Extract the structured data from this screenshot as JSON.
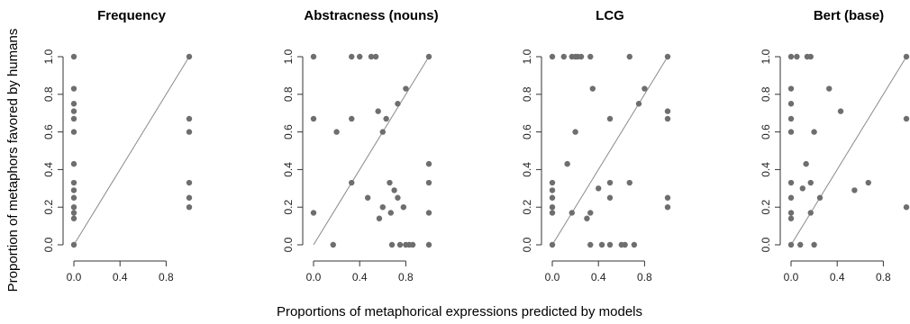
{
  "figure": {
    "ylabel": "Proportion of metaphors favored by humans",
    "xlabel": "Proportions of metaphorical expressions predicted by models"
  },
  "chart_data": [
    {
      "type": "scatter",
      "title": "Frequency",
      "xlim": [
        0,
        1
      ],
      "ylim": [
        0,
        1
      ],
      "xticks": [
        "0.0",
        "0.4",
        "0.8"
      ],
      "yticks": [
        "0.0",
        "0.2",
        "0.4",
        "0.6",
        "0.8",
        "1.0"
      ],
      "reference_line": "y = x",
      "grid": false,
      "points": [
        [
          0,
          1.0
        ],
        [
          0,
          0.83
        ],
        [
          0,
          0.75
        ],
        [
          0,
          0.71
        ],
        [
          0,
          0.67
        ],
        [
          0,
          0.6
        ],
        [
          0,
          0.43
        ],
        [
          0,
          0.33
        ],
        [
          0,
          0.29
        ],
        [
          0,
          0.25
        ],
        [
          0,
          0.2
        ],
        [
          0,
          0.17
        ],
        [
          0,
          0.14
        ],
        [
          0,
          0.0
        ],
        [
          1,
          1.0
        ],
        [
          1,
          0.67
        ],
        [
          1,
          0.6
        ],
        [
          1,
          0.33
        ],
        [
          1,
          0.25
        ],
        [
          1,
          0.2
        ]
      ]
    },
    {
      "type": "scatter",
      "title": "Abstracness (nouns)",
      "xlim": [
        0,
        1
      ],
      "ylim": [
        0,
        1
      ],
      "xticks": [
        "0.0",
        "0.4",
        "0.8"
      ],
      "yticks": [
        "0.0",
        "0.2",
        "0.4",
        "0.6",
        "0.8",
        "1.0"
      ],
      "reference_line": "y = x",
      "grid": false,
      "points": [
        [
          0,
          1.0
        ],
        [
          0,
          0.67
        ],
        [
          0,
          0.17
        ],
        [
          0.17,
          0.0
        ],
        [
          0.2,
          0.6
        ],
        [
          0.33,
          1.0
        ],
        [
          0.33,
          0.67
        ],
        [
          0.33,
          0.33
        ],
        [
          0.4,
          1.0
        ],
        [
          0.5,
          1.0
        ],
        [
          0.54,
          1.0
        ],
        [
          0.47,
          0.25
        ],
        [
          0.56,
          0.71
        ],
        [
          0.57,
          0.14
        ],
        [
          0.6,
          0.2
        ],
        [
          0.6,
          0.6
        ],
        [
          0.63,
          0.67
        ],
        [
          0.66,
          0.33
        ],
        [
          0.67,
          0.17
        ],
        [
          0.68,
          0.0
        ],
        [
          0.7,
          0.29
        ],
        [
          0.73,
          0.75
        ],
        [
          0.73,
          0.25
        ],
        [
          0.75,
          0.0
        ],
        [
          0.78,
          0.2
        ],
        [
          0.8,
          0.83
        ],
        [
          0.8,
          0.0
        ],
        [
          0.83,
          0.0
        ],
        [
          0.86,
          0.0
        ],
        [
          1,
          1.0
        ],
        [
          1,
          0.43
        ],
        [
          1,
          0.33
        ],
        [
          1,
          0.17
        ],
        [
          1,
          0.0
        ]
      ]
    },
    {
      "type": "scatter",
      "title": "LCG",
      "xlim": [
        0,
        1
      ],
      "ylim": [
        0,
        1
      ],
      "xticks": [
        "0.0",
        "0.4",
        "0.8"
      ],
      "yticks": [
        "0.0",
        "0.2",
        "0.4",
        "0.6",
        "0.8",
        "1.0"
      ],
      "reference_line": "y = x",
      "grid": false,
      "points": [
        [
          0,
          1.0
        ],
        [
          0,
          0.33
        ],
        [
          0,
          0.29
        ],
        [
          0,
          0.25
        ],
        [
          0,
          0.2
        ],
        [
          0,
          0.17
        ],
        [
          0,
          0.0
        ],
        [
          0.1,
          1.0
        ],
        [
          0.13,
          0.43
        ],
        [
          0.17,
          0.17
        ],
        [
          0.17,
          1.0
        ],
        [
          0.2,
          1.0
        ],
        [
          0.2,
          0.6
        ],
        [
          0.22,
          1.0
        ],
        [
          0.25,
          1.0
        ],
        [
          0.3,
          0.14
        ],
        [
          0.33,
          0.0
        ],
        [
          0.33,
          0.17
        ],
        [
          0.33,
          1.0
        ],
        [
          0.35,
          0.83
        ],
        [
          0.4,
          0.3
        ],
        [
          0.43,
          0.0
        ],
        [
          0.5,
          0.0
        ],
        [
          0.5,
          0.67
        ],
        [
          0.5,
          0.33
        ],
        [
          0.5,
          0.25
        ],
        [
          0.6,
          0.0
        ],
        [
          0.63,
          0.0
        ],
        [
          0.67,
          0.33
        ],
        [
          0.67,
          1.0
        ],
        [
          0.71,
          0.0
        ],
        [
          0.75,
          0.75
        ],
        [
          0.8,
          0.83
        ],
        [
          1,
          1.0
        ],
        [
          1,
          0.71
        ],
        [
          1,
          0.67
        ],
        [
          1,
          0.25
        ],
        [
          1,
          0.2
        ]
      ]
    },
    {
      "type": "scatter",
      "title": "Bert (base)",
      "xlim": [
        0,
        1
      ],
      "ylim": [
        0,
        1
      ],
      "xticks": [
        "0.0",
        "0.4",
        "0.8"
      ],
      "yticks": [
        "0.0",
        "0.2",
        "0.4",
        "0.6",
        "0.8",
        "1.0"
      ],
      "reference_line": "y = x",
      "grid": false,
      "points": [
        [
          0,
          1.0
        ],
        [
          0,
          0.83
        ],
        [
          0,
          0.75
        ],
        [
          0,
          0.67
        ],
        [
          0,
          0.6
        ],
        [
          0,
          0.33
        ],
        [
          0,
          0.25
        ],
        [
          0,
          0.17
        ],
        [
          0,
          0.14
        ],
        [
          0,
          0.0
        ],
        [
          0.05,
          1.0
        ],
        [
          0.08,
          0.0
        ],
        [
          0.1,
          0.3
        ],
        [
          0.13,
          0.43
        ],
        [
          0.14,
          1.0
        ],
        [
          0.17,
          1.0
        ],
        [
          0.17,
          0.33
        ],
        [
          0.17,
          0.17
        ],
        [
          0.2,
          0.6
        ],
        [
          0.2,
          0.0
        ],
        [
          0.25,
          0.25
        ],
        [
          0.33,
          0.83
        ],
        [
          0.43,
          0.71
        ],
        [
          0.55,
          0.29
        ],
        [
          0.67,
          0.33
        ],
        [
          1,
          1.0
        ],
        [
          1,
          0.67
        ],
        [
          1,
          0.2
        ]
      ]
    }
  ]
}
